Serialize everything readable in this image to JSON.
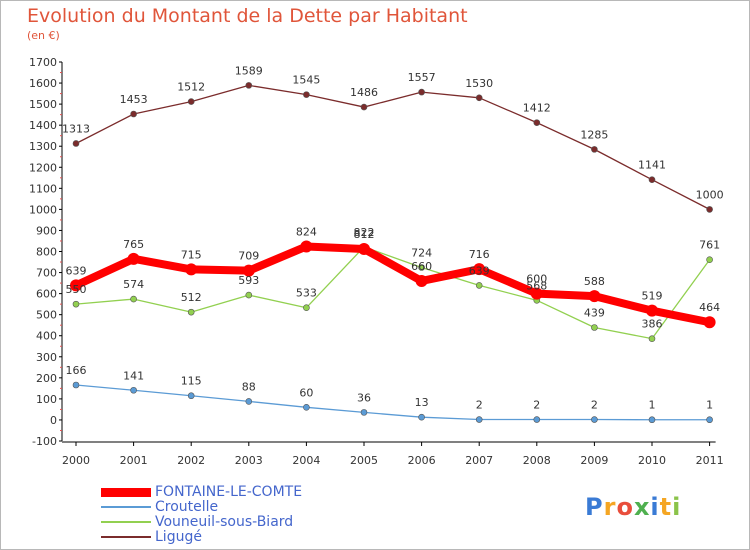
{
  "title": "Evolution du Montant de la Dette par Habitant",
  "unit": "(en €)",
  "logo": "Proxiti",
  "chart_data": {
    "type": "line",
    "title": "Evolution du Montant de la Dette par Habitant",
    "ylabel": "(en €)",
    "xlabel": "",
    "ylim": [
      -100,
      1700
    ],
    "yticks": [
      -100,
      0,
      100,
      200,
      300,
      400,
      500,
      600,
      700,
      800,
      900,
      1000,
      1100,
      1200,
      1300,
      1400,
      1500,
      1600,
      1700
    ],
    "x": [
      "2000",
      "2001",
      "2002",
      "2003",
      "2004",
      "2005",
      "2006",
      "2007",
      "2008",
      "2009",
      "2010",
      "2011"
    ],
    "grid": false,
    "legend_position": "bottom-left",
    "series": [
      {
        "name": "FONTAINE-LE-COMTE",
        "color": "#ff0000",
        "values": [
          639,
          765,
          715,
          709,
          824,
          812,
          660,
          716,
          600,
          588,
          519,
          464
        ]
      },
      {
        "name": "Croutelle",
        "color": "#5b9bd5",
        "values": [
          166,
          141,
          115,
          88,
          60,
          36,
          13,
          2,
          2,
          2,
          1,
          1
        ]
      },
      {
        "name": "Vouneuil-sous-Biard",
        "color": "#92d050",
        "values": [
          550,
          574,
          512,
          593,
          533,
          822,
          724,
          639,
          568,
          439,
          386,
          761
        ]
      },
      {
        "name": "Ligugé",
        "color": "#7b2c2c",
        "values": [
          1313,
          1453,
          1512,
          1589,
          1545,
          1486,
          1557,
          1530,
          1412,
          1285,
          1141,
          1000
        ]
      }
    ]
  }
}
